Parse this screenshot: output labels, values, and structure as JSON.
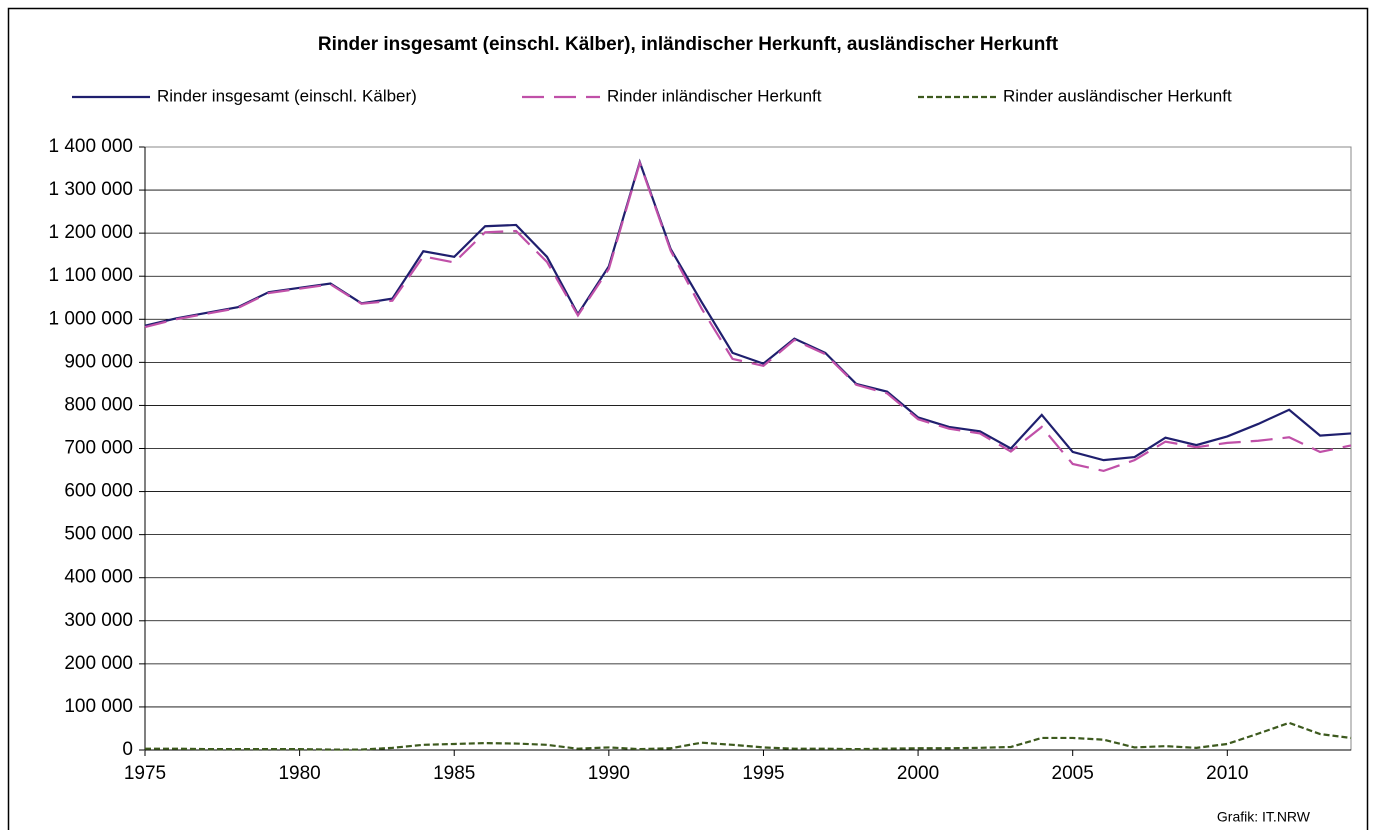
{
  "chart_data": {
    "type": "line",
    "title": "Rinder insgesamt (einschl. Kälber), inländischer Herkunft, ausländischer Herkunft",
    "source": "Grafik: IT.NRW",
    "x": [
      1975,
      1976,
      1977,
      1978,
      1979,
      1980,
      1981,
      1982,
      1983,
      1984,
      1985,
      1986,
      1987,
      1988,
      1989,
      1990,
      1991,
      1992,
      1993,
      1994,
      1995,
      1996,
      1997,
      1998,
      1999,
      2000,
      2001,
      2002,
      2003,
      2004,
      2005,
      2006,
      2007,
      2008,
      2009,
      2010,
      2011,
      2012,
      2013,
      2014
    ],
    "series": [
      {
        "name": "Rinder insgesamt (einschl. Kälber)",
        "color": "#1f1f6e",
        "dash": "solid",
        "values": [
          985000,
          1002000,
          1015000,
          1028000,
          1063000,
          1073000,
          1083000,
          1037000,
          1048000,
          1158000,
          1145000,
          1216000,
          1219000,
          1145000,
          1012000,
          1123000,
          1365000,
          1163000,
          1040000,
          922000,
          897000,
          955000,
          922000,
          850000,
          832000,
          772000,
          750000,
          740000,
          700000,
          778000,
          692000,
          673000,
          680000,
          725000,
          708000,
          728000,
          757000,
          790000,
          730000,
          735000
        ]
      },
      {
        "name": "Rinder inländischer Herkunft",
        "color": "#c050a8",
        "dash": "long",
        "values": [
          982000,
          1000000,
          1013000,
          1026000,
          1061000,
          1071000,
          1081000,
          1036000,
          1043000,
          1146000,
          1132000,
          1202000,
          1205000,
          1133000,
          1009000,
          1117000,
          1363000,
          1159000,
          1025000,
          908000,
          892000,
          952000,
          919000,
          848000,
          828000,
          768000,
          746000,
          735000,
          693000,
          750000,
          664000,
          648000,
          673000,
          716000,
          703000,
          713000,
          718000,
          726000,
          692000,
          707000
        ]
      },
      {
        "name": "Rinder ausländischer Herkunft",
        "color": "#3d5a1e",
        "dash": "short",
        "values": [
          3000,
          3000,
          2000,
          2000,
          2000,
          2000,
          1000,
          1000,
          5000,
          12000,
          14000,
          16000,
          15000,
          12000,
          3000,
          6000,
          2000,
          4000,
          17000,
          12000,
          6000,
          3000,
          3000,
          2000,
          3000,
          4000,
          4000,
          5000,
          7000,
          28000,
          28000,
          24000,
          6000,
          9000,
          5000,
          14000,
          38000,
          63000,
          37000,
          28000
        ]
      }
    ],
    "xlim": [
      1975,
      2014
    ],
    "xticks": [
      1975,
      1980,
      1985,
      1990,
      1995,
      2000,
      2005,
      2010
    ],
    "ylim": [
      0,
      1400000
    ],
    "yticks": [
      0,
      {
        "value": 100000,
        "label": "100 000"
      },
      {
        "value": 200000,
        "label": "200 000"
      },
      {
        "value": 300000,
        "label": "300 000"
      },
      {
        "value": 400000,
        "label": "400 000"
      },
      {
        "value": 500000,
        "label": "500 000"
      },
      {
        "value": 600000,
        "label": "600 000"
      },
      {
        "value": 700000,
        "label": "700 000"
      },
      {
        "value": 800000,
        "label": "800 000"
      },
      {
        "value": 900000,
        "label": "900 000"
      },
      {
        "value": 1000000,
        "label": "1 000 000"
      },
      {
        "value": 1100000,
        "label": "1 100 000"
      },
      {
        "value": 1200000,
        "label": "1 200 000"
      },
      {
        "value": 1300000,
        "label": "1 300 000"
      },
      {
        "value": 1400000,
        "label": "1 400 000"
      }
    ],
    "grid": true,
    "legend": "top"
  }
}
